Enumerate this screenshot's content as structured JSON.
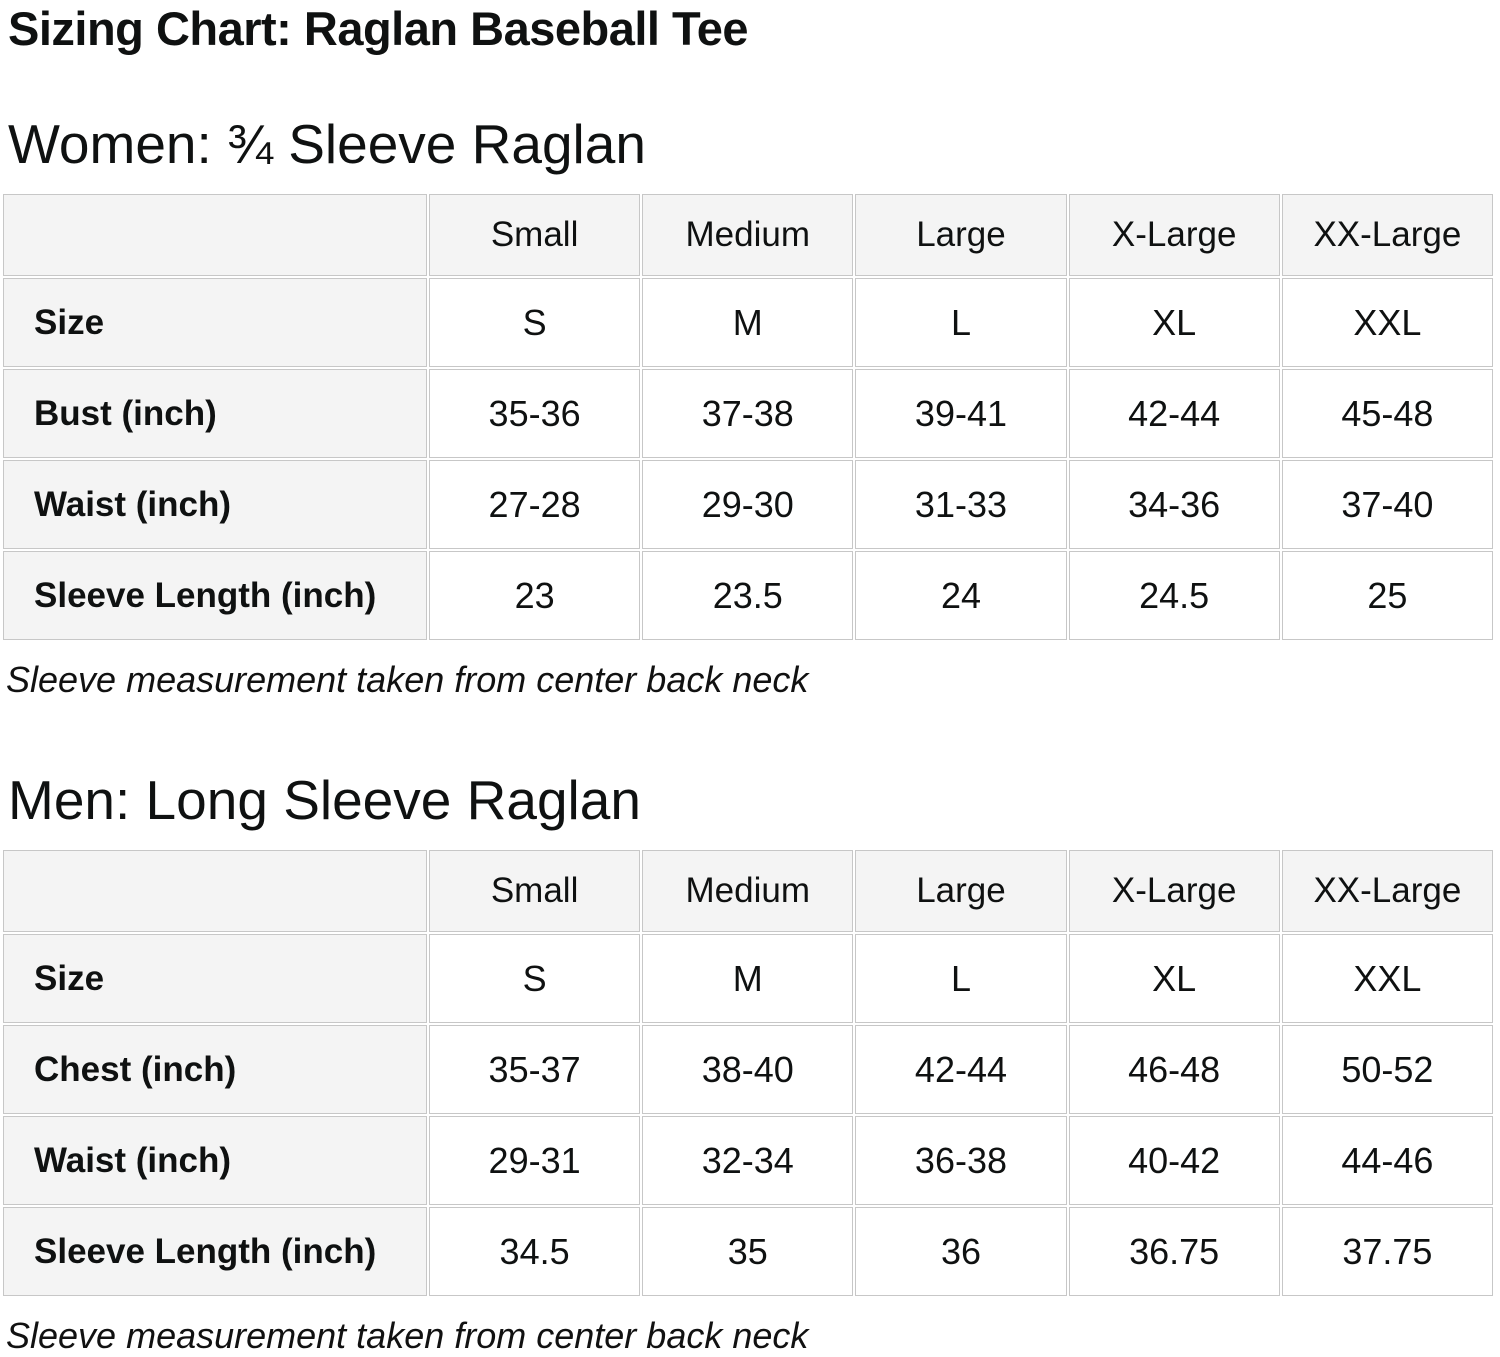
{
  "page": {
    "title": "Sizing Chart: Raglan Baseball Tee"
  },
  "style": {
    "text_color": "#0f1111",
    "header_cell_bg": "#f4f4f4",
    "data_cell_bg": "#ffffff",
    "cell_border": "#c7c7c7",
    "page_bg": "#ffffff"
  },
  "sections": [
    {
      "heading": "Women: ¾ Sleeve Raglan",
      "note": "Sleeve measurement taken from center back neck",
      "table": {
        "columns": [
          "",
          "Small",
          "Medium",
          "Large",
          "X-Large",
          "XX-Large"
        ],
        "rows": [
          {
            "label": "Size",
            "values": [
              "S",
              "M",
              "L",
              "XL",
              "XXL"
            ]
          },
          {
            "label": "Bust (inch)",
            "values": [
              "35-36",
              "37-38",
              "39-41",
              "42-44",
              "45-48"
            ]
          },
          {
            "label": "Waist (inch)",
            "values": [
              "27-28",
              "29-30",
              "31-33",
              "34-36",
              "37-40"
            ]
          },
          {
            "label": "Sleeve Length (inch)",
            "values": [
              "23",
              "23.5",
              "24",
              "24.5",
              "25"
            ]
          }
        ]
      }
    },
    {
      "heading": "Men: Long Sleeve Raglan",
      "note": "Sleeve measurement taken from center back neck",
      "table": {
        "columns": [
          "",
          "Small",
          "Medium",
          "Large",
          "X-Large",
          "XX-Large"
        ],
        "rows": [
          {
            "label": "Size",
            "values": [
              "S",
              "M",
              "L",
              "XL",
              "XXL"
            ]
          },
          {
            "label": "Chest (inch)",
            "values": [
              "35-37",
              "38-40",
              "42-44",
              "46-48",
              "50-52"
            ]
          },
          {
            "label": "Waist (inch)",
            "values": [
              "29-31",
              "32-34",
              "36-38",
              "40-42",
              "44-46"
            ]
          },
          {
            "label": "Sleeve Length (inch)",
            "values": [
              "34.5",
              "35",
              "36",
              "36.75",
              "37.75"
            ]
          }
        ]
      }
    }
  ]
}
